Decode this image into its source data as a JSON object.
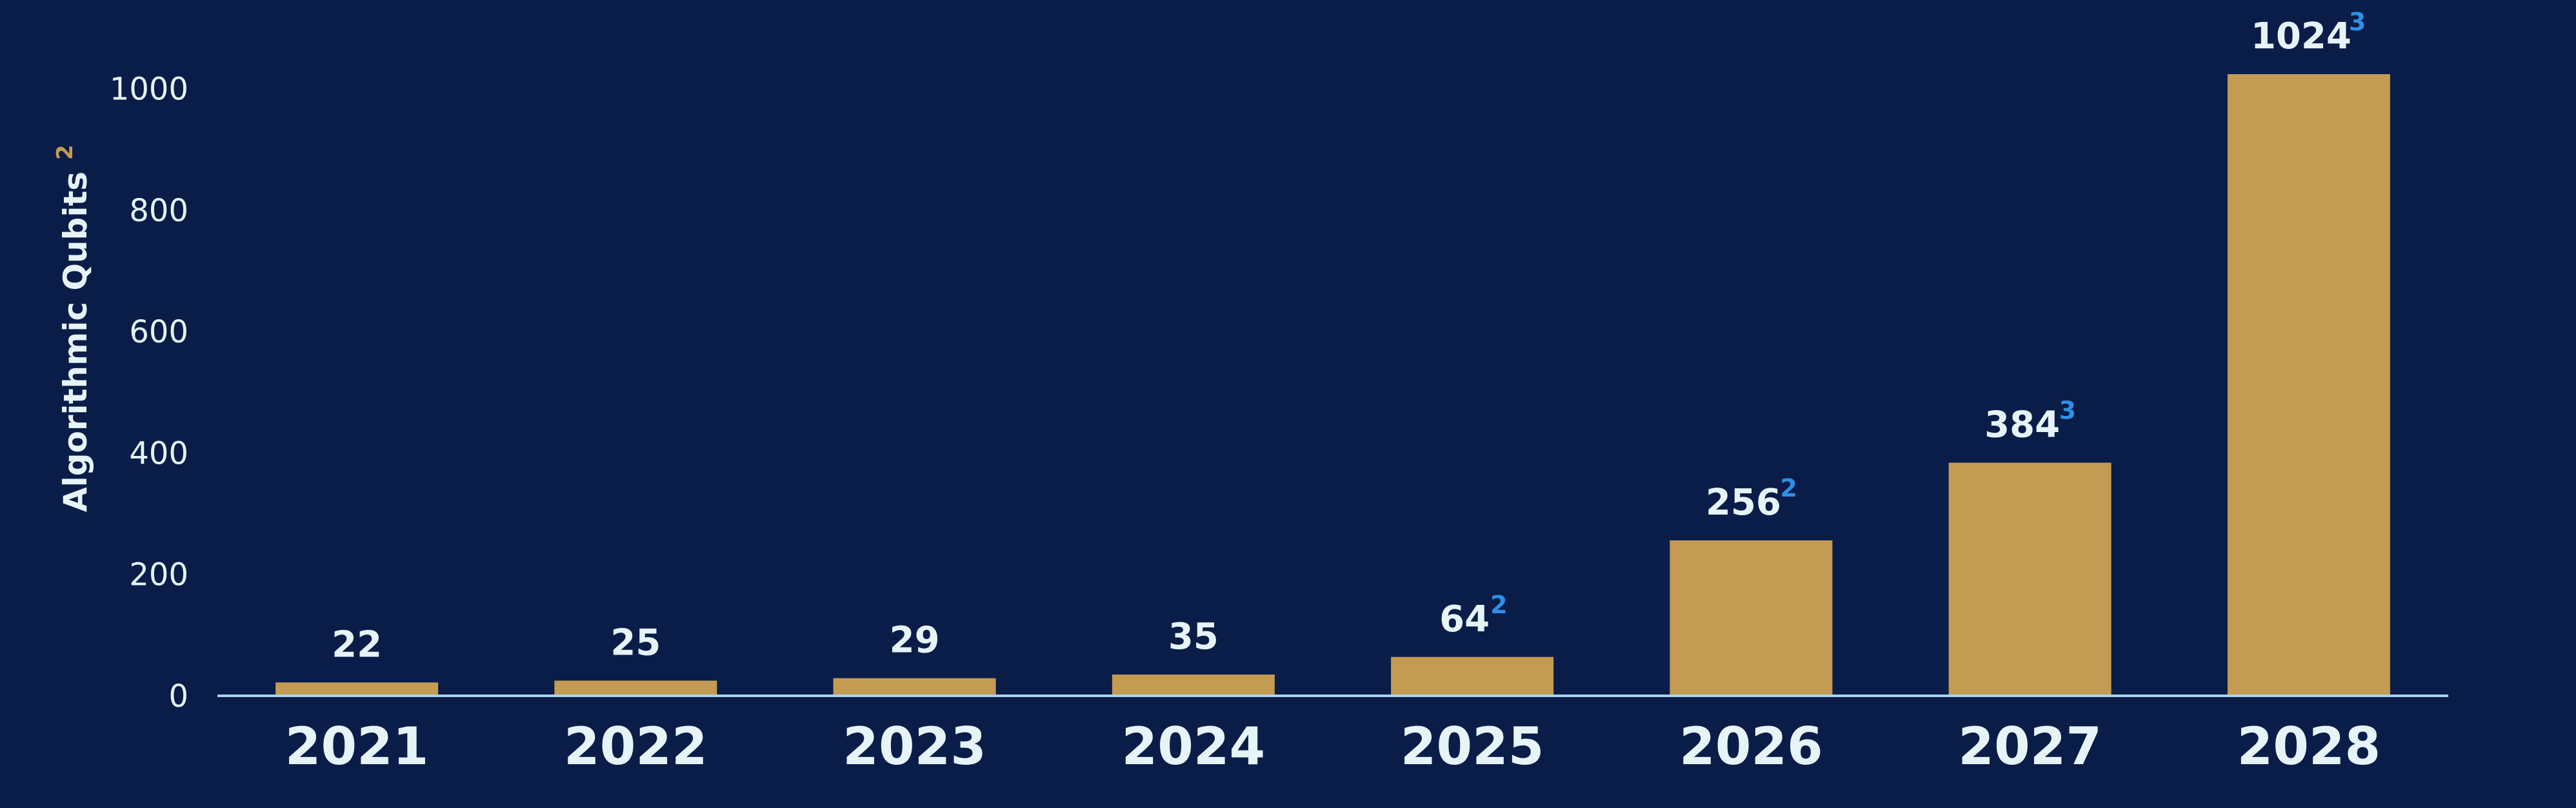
{
  "chart_data": {
    "type": "bar",
    "categories": [
      "2021",
      "2022",
      "2023",
      "2024",
      "2025",
      "2026",
      "2027",
      "2028"
    ],
    "values": [
      22,
      25,
      29,
      35,
      64,
      256,
      384,
      1024
    ],
    "data_labels": [
      "22",
      "25",
      "29",
      "35",
      "64",
      "256",
      "384",
      "1024"
    ],
    "footnotes": [
      "",
      "",
      "",
      "",
      "2",
      "2",
      "3",
      "3"
    ],
    "title": "",
    "xlabel": "",
    "ylabel": "Algorithmic Qubits",
    "ylabel_footnote": "2",
    "ylim": [
      0,
      1024
    ],
    "yticks": [
      0,
      200,
      400,
      600,
      800,
      1000
    ],
    "grid": false,
    "legend": "none",
    "colors": {
      "background": "#0a1d48",
      "bar": "#c49b53",
      "text": "#e6f4f8",
      "footnote": "#2f8fe6",
      "axis_line": "#a9d4ef"
    }
  }
}
